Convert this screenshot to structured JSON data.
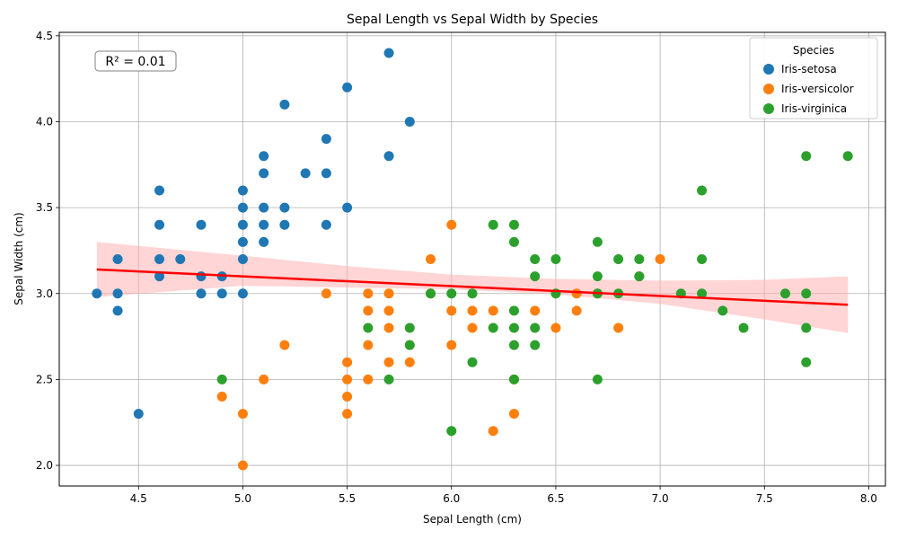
{
  "chart_data": {
    "type": "scatter",
    "title": "Sepal Length vs Sepal Width by Species",
    "xlabel": "Sepal Length (cm)",
    "ylabel": "Sepal Width (cm)",
    "xlim": [
      4.12,
      8.08
    ],
    "ylim": [
      1.88,
      4.52
    ],
    "xticks": [
      "4.5",
      "5.0",
      "5.5",
      "6.0",
      "6.5",
      "7.0",
      "7.5",
      "8.0"
    ],
    "yticks": [
      "2.0",
      "2.5",
      "3.0",
      "3.5",
      "4.0",
      "4.5"
    ],
    "grid": true,
    "legend": {
      "title": "Species",
      "placement": "top-right"
    },
    "annotation": "R² = 0.01",
    "regression": {
      "color": "#ff0000",
      "band_color": "#ffb3b3",
      "line": [
        [
          4.3,
          3.14
        ],
        [
          7.9,
          2.935
        ]
      ],
      "band_upper": [
        [
          4.3,
          3.3
        ],
        [
          5.0,
          3.22
        ],
        [
          5.5,
          3.16
        ],
        [
          6.0,
          3.11
        ],
        [
          6.5,
          3.085
        ],
        [
          7.0,
          3.075
        ],
        [
          7.5,
          3.08
        ],
        [
          7.9,
          3.1
        ]
      ],
      "band_lower": [
        [
          4.3,
          2.98
        ],
        [
          5.0,
          3.045
        ],
        [
          5.5,
          3.035
        ],
        [
          6.0,
          3.025
        ],
        [
          6.5,
          2.995
        ],
        [
          7.0,
          2.94
        ],
        [
          7.5,
          2.85
        ],
        [
          7.9,
          2.77
        ]
      ]
    },
    "series": [
      {
        "name": "Iris-setosa",
        "color": "#1f77b4",
        "points": [
          [
            4.3,
            3.0
          ],
          [
            4.4,
            3.2
          ],
          [
            4.4,
            3.0
          ],
          [
            4.4,
            2.9
          ],
          [
            4.5,
            2.3
          ],
          [
            4.6,
            3.6
          ],
          [
            4.6,
            3.4
          ],
          [
            4.6,
            3.2
          ],
          [
            4.6,
            3.1
          ],
          [
            4.7,
            3.2
          ],
          [
            4.8,
            3.4
          ],
          [
            4.8,
            3.1
          ],
          [
            4.8,
            3.0
          ],
          [
            4.9,
            3.1
          ],
          [
            4.9,
            3.0
          ],
          [
            5.0,
            3.6
          ],
          [
            5.0,
            3.5
          ],
          [
            5.0,
            3.4
          ],
          [
            5.0,
            3.3
          ],
          [
            5.0,
            3.2
          ],
          [
            5.0,
            3.0
          ],
          [
            5.1,
            3.8
          ],
          [
            5.1,
            3.7
          ],
          [
            5.1,
            3.5
          ],
          [
            5.1,
            3.4
          ],
          [
            5.1,
            3.3
          ],
          [
            5.2,
            4.1
          ],
          [
            5.2,
            3.5
          ],
          [
            5.2,
            3.4
          ],
          [
            5.3,
            3.7
          ],
          [
            5.4,
            3.9
          ],
          [
            5.4,
            3.7
          ],
          [
            5.4,
            3.4
          ],
          [
            5.5,
            4.2
          ],
          [
            5.5,
            3.5
          ],
          [
            5.7,
            4.4
          ],
          [
            5.7,
            3.8
          ],
          [
            5.8,
            4.0
          ]
        ]
      },
      {
        "name": "Iris-versicolor",
        "color": "#ff7f0e",
        "points": [
          [
            4.9,
            2.4
          ],
          [
            5.0,
            2.3
          ],
          [
            5.0,
            2.0
          ],
          [
            5.1,
            2.5
          ],
          [
            5.2,
            2.7
          ],
          [
            5.4,
            3.0
          ],
          [
            5.5,
            2.6
          ],
          [
            5.5,
            2.5
          ],
          [
            5.5,
            2.4
          ],
          [
            5.5,
            2.3
          ],
          [
            5.6,
            3.0
          ],
          [
            5.6,
            2.9
          ],
          [
            5.6,
            2.7
          ],
          [
            5.6,
            2.5
          ],
          [
            5.7,
            3.0
          ],
          [
            5.7,
            2.9
          ],
          [
            5.7,
            2.8
          ],
          [
            5.7,
            2.6
          ],
          [
            5.8,
            2.7
          ],
          [
            5.8,
            2.6
          ],
          [
            5.9,
            3.2
          ],
          [
            5.9,
            3.0
          ],
          [
            6.0,
            3.4
          ],
          [
            6.0,
            2.9
          ],
          [
            6.0,
            2.7
          ],
          [
            6.1,
            2.9
          ],
          [
            6.1,
            2.8
          ],
          [
            6.2,
            2.9
          ],
          [
            6.2,
            2.2
          ],
          [
            6.3,
            2.5
          ],
          [
            6.3,
            2.3
          ],
          [
            6.4,
            2.9
          ],
          [
            6.5,
            2.8
          ],
          [
            6.6,
            3.0
          ],
          [
            6.6,
            2.9
          ],
          [
            6.7,
            3.0
          ],
          [
            6.8,
            2.8
          ],
          [
            6.9,
            3.1
          ],
          [
            7.0,
            3.2
          ]
        ]
      },
      {
        "name": "Iris-virginica",
        "color": "#2ca02c",
        "points": [
          [
            4.9,
            2.5
          ],
          [
            5.6,
            2.8
          ],
          [
            5.7,
            2.5
          ],
          [
            5.8,
            2.8
          ],
          [
            5.8,
            2.7
          ],
          [
            5.9,
            3.0
          ],
          [
            6.0,
            3.0
          ],
          [
            6.0,
            2.2
          ],
          [
            6.1,
            3.0
          ],
          [
            6.1,
            2.6
          ],
          [
            6.2,
            3.4
          ],
          [
            6.2,
            2.8
          ],
          [
            6.3,
            3.4
          ],
          [
            6.3,
            3.3
          ],
          [
            6.3,
            2.9
          ],
          [
            6.3,
            2.8
          ],
          [
            6.3,
            2.7
          ],
          [
            6.3,
            2.5
          ],
          [
            6.4,
            3.2
          ],
          [
            6.4,
            3.1
          ],
          [
            6.4,
            2.8
          ],
          [
            6.4,
            2.7
          ],
          [
            6.5,
            3.2
          ],
          [
            6.5,
            3.0
          ],
          [
            6.7,
            3.3
          ],
          [
            6.7,
            3.1
          ],
          [
            6.7,
            3.0
          ],
          [
            6.7,
            2.5
          ],
          [
            6.8,
            3.2
          ],
          [
            6.8,
            3.0
          ],
          [
            6.9,
            3.2
          ],
          [
            6.9,
            3.1
          ],
          [
            7.1,
            3.0
          ],
          [
            7.2,
            3.6
          ],
          [
            7.2,
            3.2
          ],
          [
            7.2,
            3.0
          ],
          [
            7.3,
            2.9
          ],
          [
            7.4,
            2.8
          ],
          [
            7.6,
            3.0
          ],
          [
            7.7,
            3.8
          ],
          [
            7.7,
            3.0
          ],
          [
            7.7,
            2.8
          ],
          [
            7.7,
            2.6
          ],
          [
            7.9,
            3.8
          ]
        ]
      }
    ]
  }
}
